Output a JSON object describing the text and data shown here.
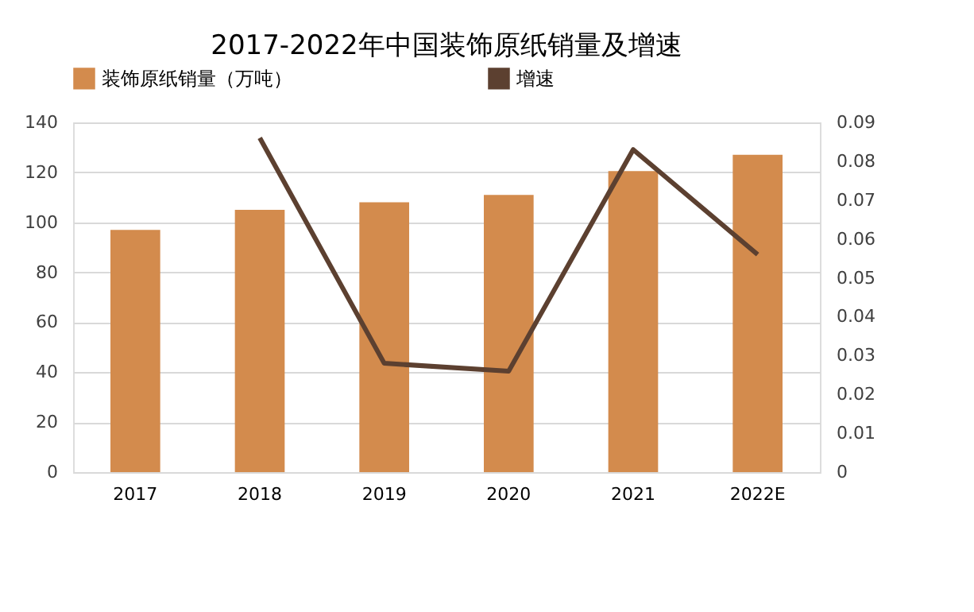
{
  "chart_data": {
    "type": "bar",
    "title": "2017-2022年中国装饰原纸销量及增速",
    "categories": [
      "2017",
      "2018",
      "2019",
      "2020",
      "2021",
      "2022E"
    ],
    "series": [
      {
        "name": "装饰原纸销量（万吨）",
        "color": "#d38b4d",
        "values": [
          97,
          105,
          108,
          111,
          120.5,
          127
        ]
      },
      {
        "name": "增速",
        "type": "line",
        "axis": "y2",
        "color": "#5c4030",
        "values": [
          null,
          0.086,
          0.028,
          0.026,
          0.083,
          0.056
        ]
      }
    ],
    "ylim": [
      0,
      140
    ],
    "yticks": [
      0,
      20,
      40,
      60,
      80,
      100,
      120,
      140
    ],
    "y2lim": [
      0,
      0.09
    ],
    "y2ticks": [
      0,
      0.01,
      0.02,
      0.03,
      0.04,
      0.05,
      0.06,
      0.07,
      0.08,
      0.09
    ],
    "grid": "y",
    "legend": "top",
    "line_style": "solid",
    "marker": "none"
  }
}
